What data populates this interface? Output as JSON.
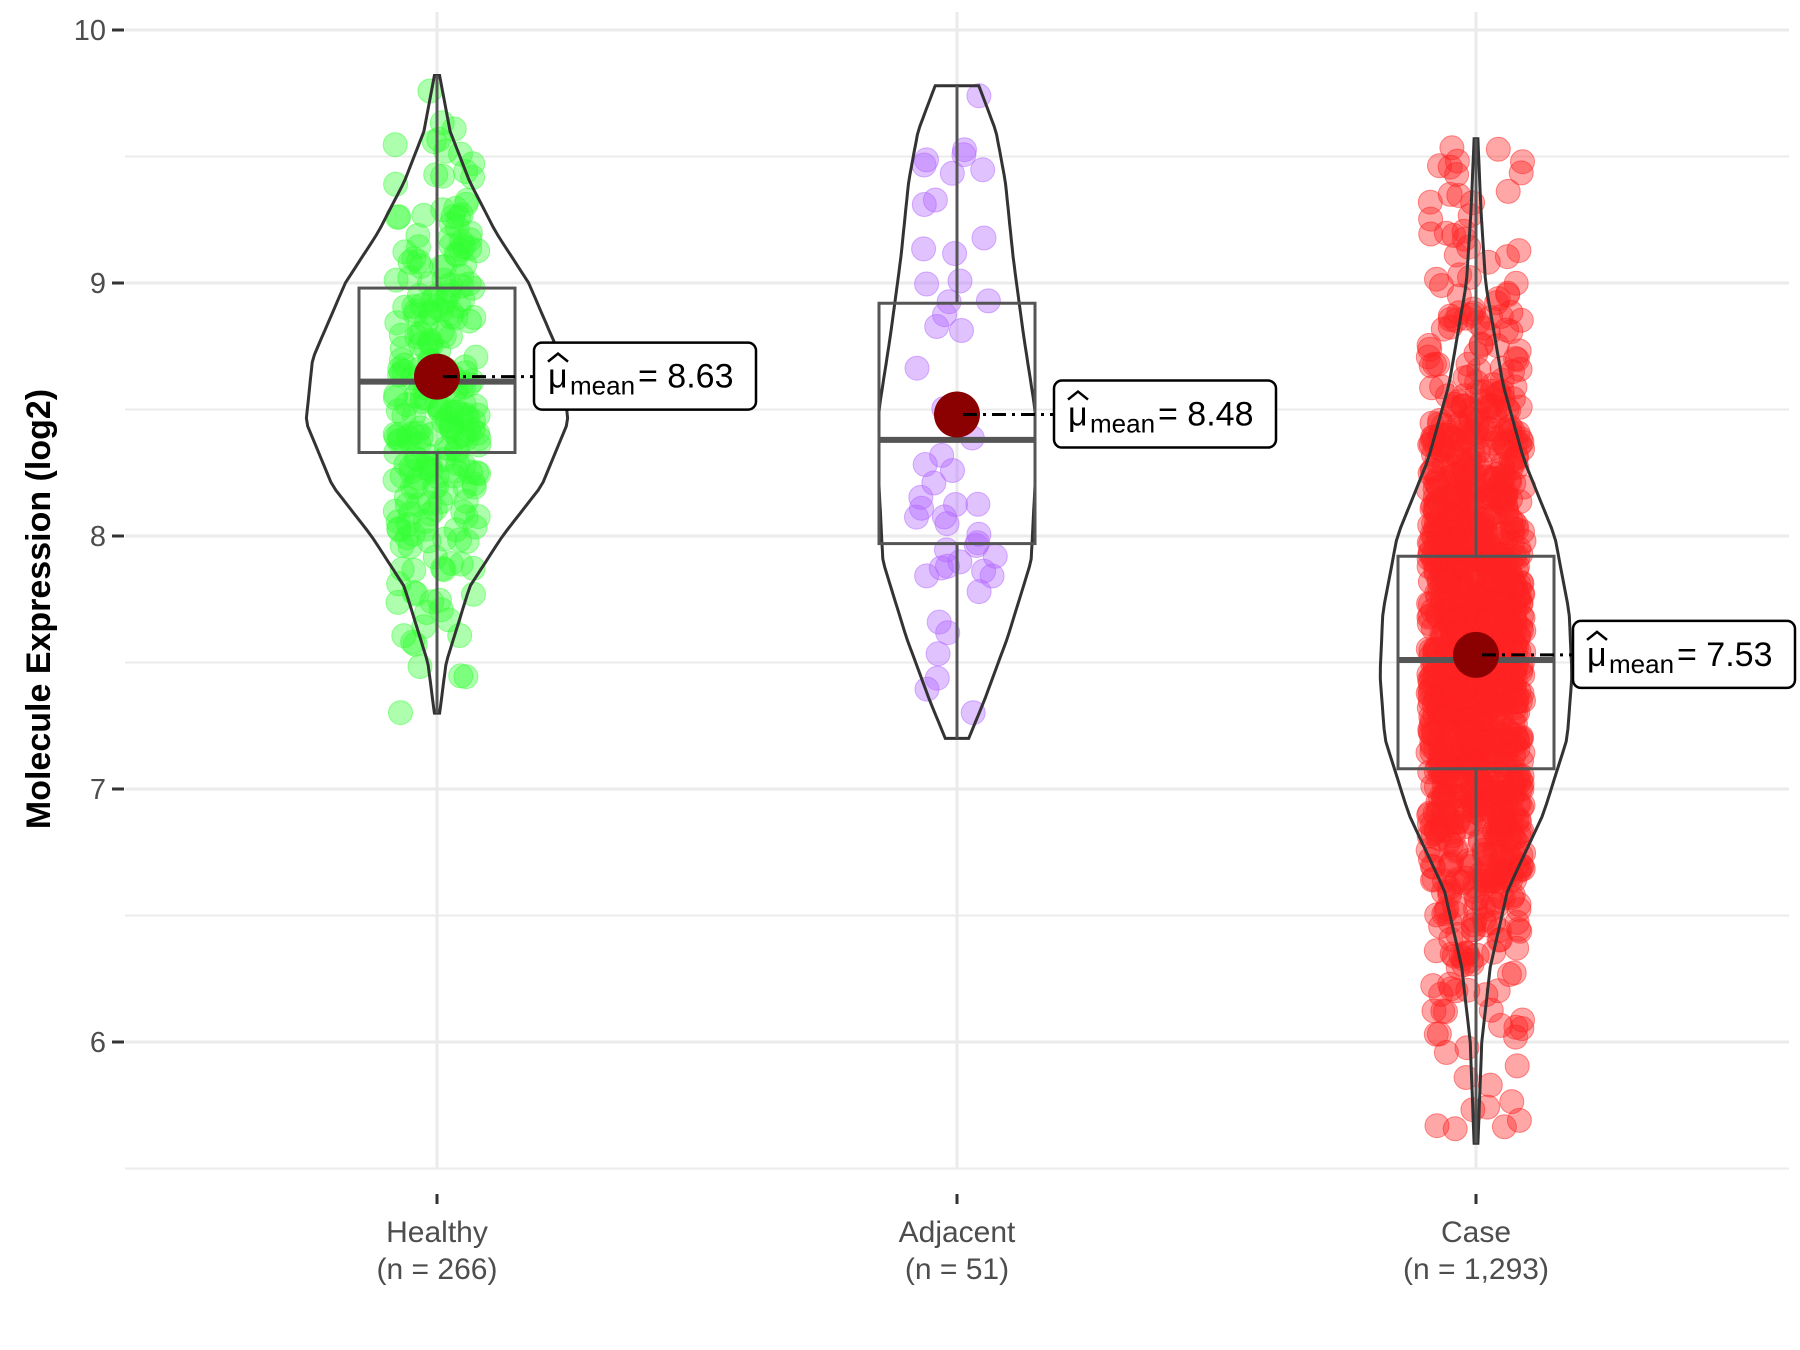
{
  "chart_data": {
    "type": "violin",
    "title": "",
    "xlabel": "",
    "ylabel": "Molecule Expression (log2)",
    "ylim": [
      5.5,
      10.05
    ],
    "yticks": [
      6,
      7,
      8,
      9,
      10
    ],
    "grid": true,
    "groups": [
      {
        "name": "Healthy",
        "n_label": "(n = 266)",
        "n": 266,
        "color": "#33ff33",
        "min": 7.3,
        "q1": 8.33,
        "median": 8.61,
        "q3": 8.98,
        "max": 9.82,
        "mean": 8.63,
        "mean_symbol": "μ",
        "mean_sub": "mean",
        "mean_text": "= 8.63",
        "density": [
          [
            7.3,
            0.02
          ],
          [
            7.5,
            0.07
          ],
          [
            7.8,
            0.25
          ],
          [
            8.0,
            0.5
          ],
          [
            8.2,
            0.8
          ],
          [
            8.45,
            1.0
          ],
          [
            8.7,
            0.95
          ],
          [
            9.0,
            0.7
          ],
          [
            9.2,
            0.45
          ],
          [
            9.4,
            0.25
          ],
          [
            9.6,
            0.1
          ],
          [
            9.82,
            0.02
          ]
        ]
      },
      {
        "name": "Adjacent",
        "n_label": "(n = 51)",
        "n": 51,
        "color": "#b266ff",
        "min": 7.2,
        "q1": 7.97,
        "median": 8.38,
        "q3": 8.92,
        "max": 9.78,
        "mean": 8.48,
        "mean_symbol": "μ",
        "mean_sub": "mean",
        "mean_text": "= 8.48",
        "density": [
          [
            7.2,
            0.15
          ],
          [
            7.35,
            0.35
          ],
          [
            7.6,
            0.65
          ],
          [
            7.9,
            0.95
          ],
          [
            8.2,
            1.0
          ],
          [
            8.5,
            1.0
          ],
          [
            8.8,
            0.85
          ],
          [
            9.1,
            0.72
          ],
          [
            9.4,
            0.62
          ],
          [
            9.6,
            0.5
          ],
          [
            9.78,
            0.28
          ]
        ]
      },
      {
        "name": "Case",
        "n_label": "(n = 1,293)",
        "n": 1293,
        "color": "#ff2222",
        "min": 5.6,
        "q1": 7.08,
        "median": 7.51,
        "q3": 7.92,
        "max": 9.57,
        "mean": 7.53,
        "mean_symbol": "μ",
        "mean_sub": "mean",
        "mean_text": "= 7.53",
        "density": [
          [
            5.6,
            0.02
          ],
          [
            6.0,
            0.06
          ],
          [
            6.3,
            0.15
          ],
          [
            6.6,
            0.33
          ],
          [
            6.9,
            0.7
          ],
          [
            7.2,
            0.95
          ],
          [
            7.45,
            1.0
          ],
          [
            7.7,
            0.97
          ],
          [
            8.0,
            0.82
          ],
          [
            8.3,
            0.5
          ],
          [
            8.6,
            0.28
          ],
          [
            9.0,
            0.1
          ],
          [
            9.3,
            0.05
          ],
          [
            9.57,
            0.02
          ]
        ]
      }
    ]
  }
}
